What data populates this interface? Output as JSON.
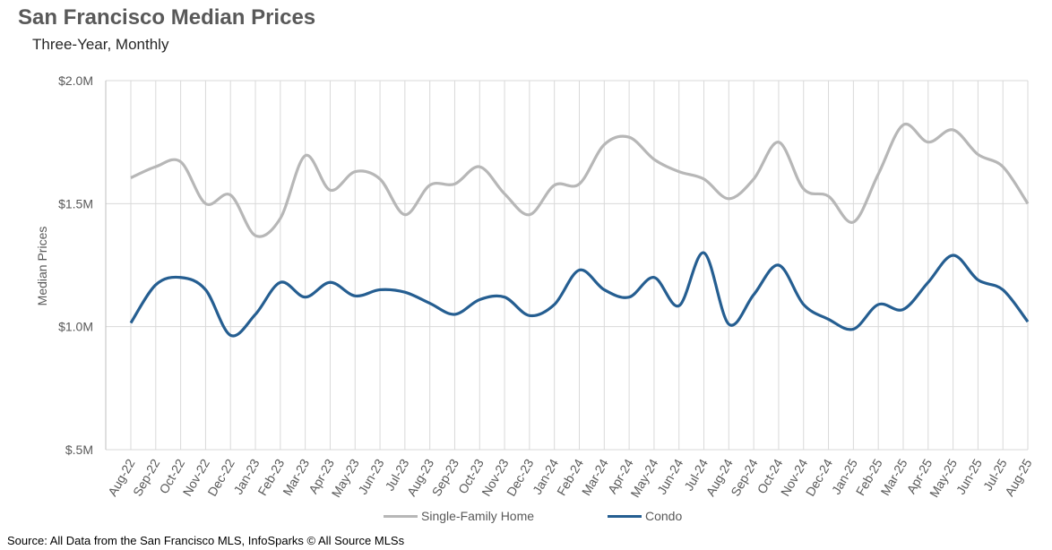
{
  "header": {
    "title": "San Francisco Median Prices",
    "subtitle": "Three-Year, Monthly"
  },
  "source": "Source: All Data from the San Francisco MLS, InfoSparks © All Source MLSs",
  "colors": {
    "single_family": "#b7b7b7",
    "condo": "#255e91",
    "grid": "#d9d9d9",
    "axis": "#bfbfbf"
  },
  "chart_data": {
    "type": "line",
    "title": "San Francisco Median Prices",
    "subtitle": "Three-Year, Monthly",
    "xlabel": "",
    "ylabel": "Median Prices",
    "ylim": [
      500000,
      2000000
    ],
    "yticks": [
      500000,
      1000000,
      1500000,
      2000000
    ],
    "ytick_labels": [
      "$.5M",
      "$1.0M",
      "$1.5M",
      "$2.0M"
    ],
    "grid": "vertical gridlines at each month; horizontal at each y tick",
    "legend_position": "bottom",
    "categories": [
      "Aug-22",
      "Sep-22",
      "Oct-22",
      "Nov-22",
      "Dec-22",
      "Jan-23",
      "Feb-23",
      "Mar-23",
      "Apr-23",
      "May-23",
      "Jun-23",
      "Jul-23",
      "Aug-23",
      "Sep-23",
      "Oct-23",
      "Nov-23",
      "Dec-23",
      "Jan-24",
      "Feb-24",
      "Mar-24",
      "Apr-24",
      "May-24",
      "Jun-24",
      "Jul-24",
      "Aug-24",
      "Sep-24",
      "Oct-24",
      "Nov-24",
      "Dec-24",
      "Jan-25",
      "Feb-25",
      "Mar-25",
      "Apr-25",
      "May-25",
      "Jun-25",
      "Jul-25",
      "Aug-25"
    ],
    "series": [
      {
        "name": "Single-Family Home",
        "color": "#b7b7b7",
        "values": [
          1605000,
          1650000,
          1670000,
          1500000,
          1535000,
          1370000,
          1440000,
          1695000,
          1555000,
          1630000,
          1600000,
          1455000,
          1575000,
          1580000,
          1650000,
          1540000,
          1455000,
          1575000,
          1580000,
          1740000,
          1770000,
          1680000,
          1630000,
          1600000,
          1520000,
          1600000,
          1750000,
          1560000,
          1530000,
          1425000,
          1620000,
          1820000,
          1750000,
          1800000,
          1700000,
          1650000,
          1500000
        ]
      },
      {
        "name": "Condo",
        "color": "#255e91",
        "values": [
          1015000,
          1170000,
          1200000,
          1150000,
          965000,
          1050000,
          1180000,
          1120000,
          1180000,
          1125000,
          1150000,
          1140000,
          1095000,
          1050000,
          1110000,
          1120000,
          1045000,
          1090000,
          1230000,
          1150000,
          1120000,
          1200000,
          1085000,
          1300000,
          1010000,
          1130000,
          1250000,
          1090000,
          1030000,
          990000,
          1090000,
          1070000,
          1180000,
          1290000,
          1190000,
          1150000,
          1020000
        ]
      }
    ]
  }
}
